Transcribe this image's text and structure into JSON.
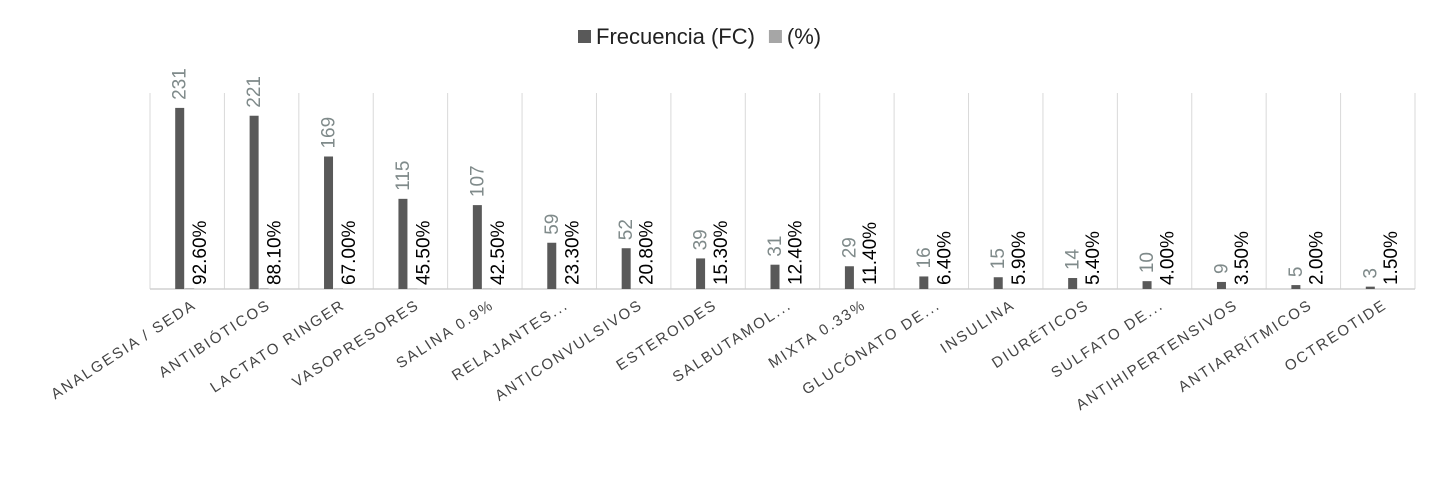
{
  "chart_data": {
    "type": "bar",
    "categories": [
      "ANALGESIA / SEDA",
      "ANTIBIÓTICOS",
      "LACTATO RINGER",
      "VASOPRESORES",
      "SALINA 0.9%",
      "RELAJANTES...",
      "ANTICONVULSIVOS",
      "ESTEROIDES",
      "SALBUTAMOL...",
      "MIXTA 0.33%",
      "GLUCÓNATO DE...",
      "INSULINA",
      "DIURÉTICOS",
      "SULFATO DE...",
      "ANTIHIPERTENSIVOS",
      "ANTIARRÍTMICOS",
      "OCTREOTIDE"
    ],
    "series": [
      {
        "name": "Frecuencia (FC)",
        "color": "#595959",
        "label_color": "#7f8a8a",
        "values": [
          231,
          221,
          169,
          115,
          107,
          59,
          52,
          39,
          31,
          29,
          16,
          15,
          14,
          10,
          9,
          5,
          3
        ]
      },
      {
        "name": "(%)",
        "color": "#a6a6a6",
        "label_color": "#000000",
        "values": [
          0.926,
          0.881,
          0.67,
          0.455,
          0.425,
          0.233,
          0.208,
          0.153,
          0.124,
          0.114,
          0.064,
          0.059,
          0.054,
          0.04,
          0.035,
          0.02,
          0.015
        ],
        "value_labels": [
          "92.60%",
          "88.10%",
          "67.00%",
          "45.50%",
          "42.50%",
          "23.30%",
          "20.80%",
          "15.30%",
          "12.40%",
          "11.40%",
          "6.40%",
          "5.90%",
          "5.40%",
          "4.00%",
          "3.50%",
          "2.00%",
          "1.50%"
        ]
      }
    ],
    "ylim": [
      0,
      250
    ],
    "legend": "top"
  }
}
